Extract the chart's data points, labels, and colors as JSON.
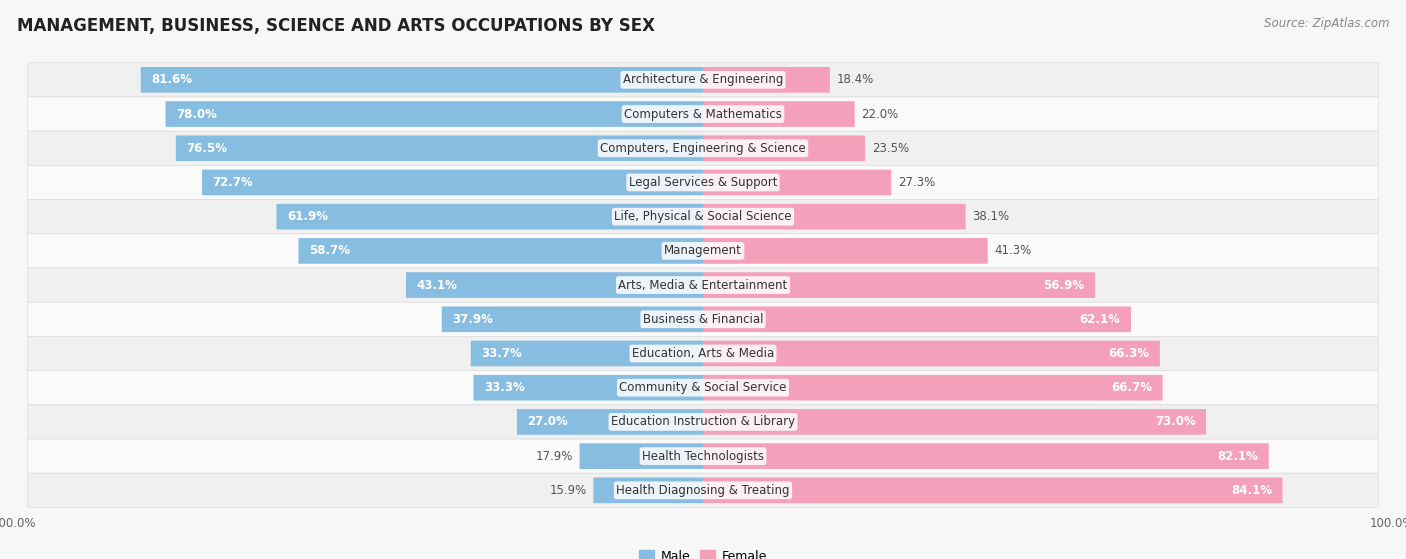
{
  "title": "MANAGEMENT, BUSINESS, SCIENCE AND ARTS OCCUPATIONS BY SEX",
  "source": "Source: ZipAtlas.com",
  "categories": [
    "Architecture & Engineering",
    "Computers & Mathematics",
    "Computers, Engineering & Science",
    "Legal Services & Support",
    "Life, Physical & Social Science",
    "Management",
    "Arts, Media & Entertainment",
    "Business & Financial",
    "Education, Arts & Media",
    "Community & Social Service",
    "Education Instruction & Library",
    "Health Technologists",
    "Health Diagnosing & Treating"
  ],
  "male_pct": [
    81.6,
    78.0,
    76.5,
    72.7,
    61.9,
    58.7,
    43.1,
    37.9,
    33.7,
    33.3,
    27.0,
    17.9,
    15.9
  ],
  "female_pct": [
    18.4,
    22.0,
    23.5,
    27.3,
    38.1,
    41.3,
    56.9,
    62.1,
    66.3,
    66.7,
    73.0,
    82.1,
    84.1
  ],
  "male_color": "#87bde0",
  "female_color": "#f4a0bb",
  "bg_color": "#f7f7f7",
  "row_color_even": "#f0f0f0",
  "row_color_odd": "#fafafa",
  "title_fontsize": 12,
  "source_fontsize": 8.5,
  "label_fontsize": 8.5,
  "pct_fontsize": 8.5
}
